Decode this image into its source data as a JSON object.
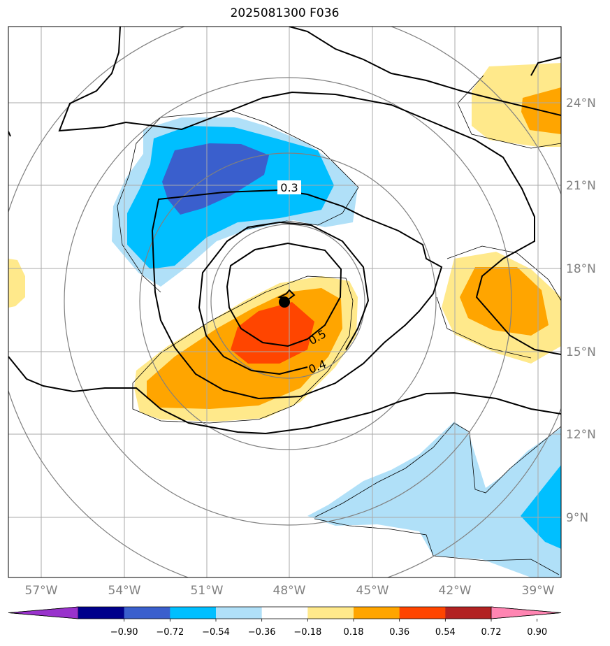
{
  "title": "2025081300 F036",
  "map": {
    "lon_labels": [
      "57°W",
      "54°W",
      "51°W",
      "48°W",
      "45°W",
      "42°W",
      "39°W"
    ],
    "lat_labels": [
      "24°N",
      "21°N",
      "18°N",
      "15°N",
      "12°N",
      "9°N"
    ],
    "contour_labels": [
      "0.3",
      "0.5",
      "0.4"
    ],
    "center_marker": {
      "lon": -48.0,
      "lat": 16.8
    },
    "colors": {
      "grid": "#aaaaaa",
      "range_rings": "#808080",
      "contours": "#000000"
    }
  },
  "colorbar": {
    "tick_labels": [
      "−0.90",
      "−0.72",
      "−0.54",
      "−0.36",
      "−0.18",
      "0.18",
      "0.36",
      "0.54",
      "0.72",
      "0.90"
    ],
    "colors": [
      "#9932cc",
      "#00008b",
      "#3a5fcd",
      "#00bfff",
      "#b0e0f8",
      "#ffffff",
      "#ffe98b",
      "#ffa500",
      "#ff4500",
      "#b22222",
      "#ff85b2"
    ]
  }
}
